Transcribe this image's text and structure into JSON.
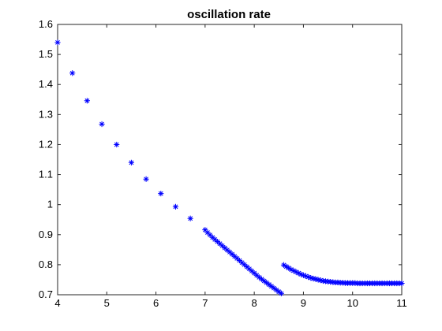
{
  "chart_data": {
    "type": "scatter",
    "title": "oscillation rate",
    "xlabel": "",
    "ylabel": "",
    "xlim": [
      4,
      11
    ],
    "ylim": [
      0.7,
      1.6
    ],
    "xticks": [
      "4",
      "5",
      "6",
      "7",
      "8",
      "9",
      "10",
      "11"
    ],
    "yticks": [
      "0.7",
      "0.8",
      "0.9",
      "1",
      "1.1",
      "1.2",
      "1.3",
      "1.4",
      "1.5",
      "1.6"
    ],
    "grid": false,
    "marker": "asterisk",
    "color": "#0000ff",
    "series": [
      {
        "x": [
          4.0,
          4.3,
          4.6,
          4.9,
          5.2,
          5.5,
          5.8,
          6.1,
          6.4,
          6.7,
          7.0,
          7.05,
          7.1,
          7.15,
          7.2,
          7.25,
          7.3,
          7.35,
          7.4,
          7.45,
          7.5,
          7.55,
          7.6,
          7.65,
          7.7,
          7.75,
          7.8,
          7.85,
          7.9,
          7.95,
          8.0,
          8.05,
          8.1,
          8.15,
          8.2,
          8.25,
          8.3,
          8.35,
          8.4,
          8.45,
          8.5,
          8.55,
          8.6,
          8.65,
          8.7,
          8.75,
          8.8,
          8.85,
          8.9,
          8.95,
          9.0,
          9.05,
          9.1,
          9.15,
          9.2,
          9.25,
          9.3,
          9.35,
          9.4,
          9.45,
          9.5,
          9.55,
          9.6,
          9.65,
          9.7,
          9.75,
          9.8,
          9.85,
          9.9,
          9.95,
          10.0,
          10.05,
          10.1,
          10.15,
          10.2,
          10.25,
          10.3,
          10.35,
          10.4,
          10.45,
          10.5,
          10.55,
          10.6,
          10.65,
          10.7,
          10.75,
          10.8,
          10.85,
          10.9,
          10.95,
          11.0
        ],
        "y": [
          1.54,
          1.438,
          1.346,
          1.268,
          1.2,
          1.14,
          1.085,
          1.037,
          0.993,
          0.954,
          0.916,
          0.907,
          0.899,
          0.891,
          0.884,
          0.877,
          0.87,
          0.863,
          0.856,
          0.849,
          0.842,
          0.835,
          0.828,
          0.821,
          0.814,
          0.807,
          0.8,
          0.793,
          0.786,
          0.779,
          0.772,
          0.765,
          0.758,
          0.752,
          0.746,
          0.74,
          0.734,
          0.728,
          0.722,
          0.716,
          0.71,
          0.7045,
          0.799,
          0.794,
          0.789,
          0.784,
          0.78,
          0.776,
          0.772,
          0.768,
          0.765,
          0.762,
          0.759,
          0.756,
          0.754,
          0.752,
          0.75,
          0.748,
          0.746,
          0.745,
          0.744,
          0.743,
          0.742,
          0.741,
          0.741,
          0.74,
          0.74,
          0.739,
          0.739,
          0.739,
          0.739,
          0.739,
          0.738,
          0.738,
          0.738,
          0.738,
          0.738,
          0.738,
          0.738,
          0.738,
          0.738,
          0.738,
          0.738,
          0.738,
          0.738,
          0.738,
          0.738,
          0.738,
          0.738,
          0.738,
          0.738
        ]
      }
    ]
  }
}
